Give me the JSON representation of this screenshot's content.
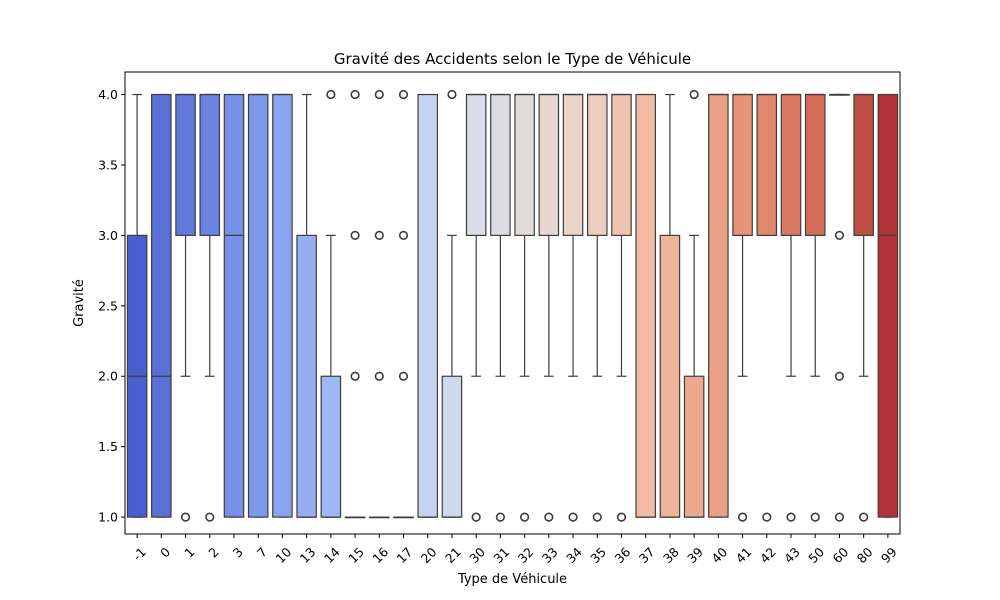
{
  "chart_data": {
    "type": "box",
    "title": "Gravité des Accidents selon le Type de Véhicule",
    "xlabel": "Type de Véhicule",
    "ylabel": "Gravité",
    "ylim": [
      0.88,
      4.16
    ],
    "yticks": [
      "1.0",
      "1.5",
      "2.0",
      "2.5",
      "3.0",
      "3.5",
      "4.0"
    ],
    "ytick_values": [
      1.0,
      1.5,
      2.0,
      2.5,
      3.0,
      3.5,
      4.0
    ],
    "grid": false,
    "legend": "none",
    "categories": [
      "-1",
      "0",
      "1",
      "2",
      "3",
      "7",
      "10",
      "13",
      "14",
      "15",
      "16",
      "17",
      "20",
      "21",
      "30",
      "31",
      "32",
      "33",
      "34",
      "35",
      "36",
      "37",
      "38",
      "39",
      "40",
      "41",
      "42",
      "43",
      "50",
      "60",
      "80",
      "99"
    ],
    "boxes": [
      {
        "q1": 1,
        "median": 2,
        "q3": 3,
        "wlo": 1,
        "whi": 4,
        "outliers": [],
        "color": "#4a5fcf"
      },
      {
        "q1": 1,
        "median": 2,
        "q3": 4,
        "wlo": 1,
        "whi": 4,
        "outliers": [],
        "color": "#5b70d6"
      },
      {
        "q1": 3,
        "median": 4,
        "q3": 4,
        "wlo": 2,
        "whi": 4,
        "outliers": [
          1
        ],
        "color": "#6279dc"
      },
      {
        "q1": 3,
        "median": 4,
        "q3": 4,
        "wlo": 2,
        "whi": 4,
        "outliers": [
          1
        ],
        "color": "#6b84e3"
      },
      {
        "q1": 1,
        "median": 3,
        "q3": 4,
        "wlo": 1,
        "whi": 4,
        "outliers": [],
        "color": "#7590e6"
      },
      {
        "q1": 1,
        "median": 4,
        "q3": 4,
        "wlo": 1,
        "whi": 4,
        "outliers": [],
        "color": "#7e99ec"
      },
      {
        "q1": 1,
        "median": 4,
        "q3": 4,
        "wlo": 1,
        "whi": 4,
        "outliers": [],
        "color": "#8aa3ef"
      },
      {
        "q1": 1,
        "median": 1,
        "q3": 3,
        "wlo": 1,
        "whi": 4,
        "outliers": [],
        "color": "#95adf3"
      },
      {
        "q1": 1,
        "median": 1,
        "q3": 2,
        "wlo": 1,
        "whi": 3,
        "outliers": [
          4
        ],
        "color": "#a0b7f5"
      },
      {
        "q1": 1,
        "median": 1,
        "q3": 1,
        "wlo": 1,
        "whi": 1,
        "outliers": [
          2,
          3,
          4
        ],
        "color": "#abbff7"
      },
      {
        "q1": 1,
        "median": 1,
        "q3": 1,
        "wlo": 1,
        "whi": 1,
        "outliers": [
          2,
          3,
          4
        ],
        "color": "#b5c7f7"
      },
      {
        "q1": 1,
        "median": 1,
        "q3": 1,
        "wlo": 1,
        "whi": 1,
        "outliers": [
          2,
          3,
          4
        ],
        "color": "#bfcff6"
      },
      {
        "q1": 1,
        "median": 1,
        "q3": 4,
        "wlo": 1,
        "whi": 4,
        "outliers": [],
        "color": "#c6d4f2"
      },
      {
        "q1": 1,
        "median": 1,
        "q3": 2,
        "wlo": 1,
        "whi": 3,
        "outliers": [
          4
        ],
        "color": "#cfd9ed"
      },
      {
        "q1": 3,
        "median": 4,
        "q3": 4,
        "wlo": 2,
        "whi": 4,
        "outliers": [
          1
        ],
        "color": "#d8dde8"
      },
      {
        "q1": 3,
        "median": 4,
        "q3": 4,
        "wlo": 2,
        "whi": 4,
        "outliers": [
          1
        ],
        "color": "#dcdde2"
      },
      {
        "q1": 3,
        "median": 4,
        "q3": 4,
        "wlo": 2,
        "whi": 4,
        "outliers": [
          1
        ],
        "color": "#e1dcda"
      },
      {
        "q1": 3,
        "median": 4,
        "q3": 4,
        "wlo": 2,
        "whi": 4,
        "outliers": [
          1
        ],
        "color": "#e6d8d1"
      },
      {
        "q1": 3,
        "median": 4,
        "q3": 4,
        "wlo": 2,
        "whi": 4,
        "outliers": [
          1
        ],
        "color": "#ead3c7"
      },
      {
        "q1": 3,
        "median": 4,
        "q3": 4,
        "wlo": 2,
        "whi": 4,
        "outliers": [
          1
        ],
        "color": "#edcdbd"
      },
      {
        "q1": 3,
        "median": 4,
        "q3": 4,
        "wlo": 2,
        "whi": 4,
        "outliers": [
          1
        ],
        "color": "#efc5b2"
      },
      {
        "q1": 1,
        "median": 1,
        "q3": 4,
        "wlo": 1,
        "whi": 4,
        "outliers": [],
        "color": "#f0bca6"
      },
      {
        "q1": 1,
        "median": 1,
        "q3": 3,
        "wlo": 1,
        "whi": 4,
        "outliers": [],
        "color": "#efb39b"
      },
      {
        "q1": 1,
        "median": 1,
        "q3": 2,
        "wlo": 1,
        "whi": 3,
        "outliers": [
          4
        ],
        "color": "#eda98f"
      },
      {
        "q1": 1,
        "median": 4,
        "q3": 4,
        "wlo": 1,
        "whi": 4,
        "outliers": [],
        "color": "#ea9e83"
      },
      {
        "q1": 3,
        "median": 4,
        "q3": 4,
        "wlo": 2,
        "whi": 4,
        "outliers": [
          1
        ],
        "color": "#e69378"
      },
      {
        "q1": 3,
        "median": 4,
        "q3": 4,
        "wlo": 3,
        "whi": 4,
        "outliers": [
          1
        ],
        "color": "#e0876d"
      },
      {
        "q1": 3,
        "median": 4,
        "q3": 4,
        "wlo": 2,
        "whi": 4,
        "outliers": [
          1
        ],
        "color": "#da7a62"
      },
      {
        "q1": 3,
        "median": 4,
        "q3": 4,
        "wlo": 2,
        "whi": 4,
        "outliers": [
          1
        ],
        "color": "#d26c57"
      },
      {
        "q1": 4,
        "median": 4,
        "q3": 4,
        "wlo": 4,
        "whi": 4,
        "outliers": [
          1,
          2,
          3
        ],
        "color": "#c95d4d"
      },
      {
        "q1": 3,
        "median": 4,
        "q3": 4,
        "wlo": 2,
        "whi": 4,
        "outliers": [
          1
        ],
        "color": "#bf4e44"
      },
      {
        "q1": 1,
        "median": 3,
        "q3": 4,
        "wlo": 1,
        "whi": 4,
        "outliers": [],
        "color": "#b3323a"
      }
    ]
  }
}
